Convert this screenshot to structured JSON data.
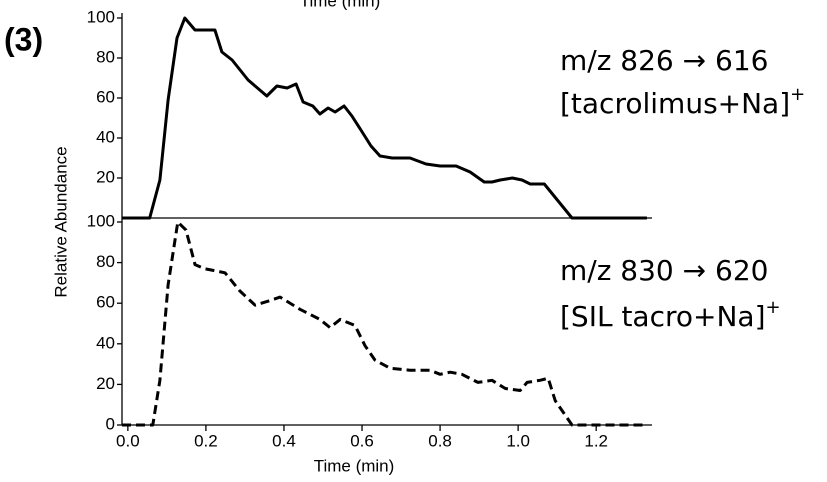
{
  "panel_label": "(3)",
  "chart_data": [
    {
      "type": "line",
      "top_xlabel": "Time (min)",
      "ylabel": "Relative Abundance",
      "xlim": [
        -0.015,
        1.343
      ],
      "ylim": [
        0,
        100
      ],
      "yticks": [
        20,
        40,
        60,
        80,
        100
      ],
      "annotations": [
        {
          "text": "m/z 826 → 616"
        },
        {
          "text": "[tacrolimus+Na]",
          "sup": "+"
        }
      ],
      "series": [
        {
          "color": "#000000",
          "linestyle": "solid",
          "x": [
            -0.015,
            0.056,
            0.082,
            0.103,
            0.126,
            0.146,
            0.172,
            0.223,
            0.241,
            0.267,
            0.308,
            0.356,
            0.382,
            0.408,
            0.431,
            0.449,
            0.474,
            0.492,
            0.513,
            0.531,
            0.554,
            0.574,
            0.597,
            0.623,
            0.646,
            0.677,
            0.723,
            0.764,
            0.8,
            0.841,
            0.877,
            0.913,
            0.933,
            0.954,
            0.985,
            1.01,
            1.031,
            1.067,
            1.138,
            1.33
          ],
          "values": [
            0,
            0,
            19,
            59,
            90,
            100,
            94,
            94,
            83,
            79,
            69,
            61,
            66,
            65,
            67,
            58,
            56,
            52,
            55,
            53,
            56,
            51,
            44,
            36,
            31,
            30,
            30,
            27,
            26,
            26,
            23,
            18,
            18,
            19,
            20,
            19,
            17,
            17,
            0,
            0
          ]
        }
      ]
    },
    {
      "type": "line",
      "xlabel": "Time (min)",
      "xlim": [
        -0.015,
        1.343
      ],
      "ylim": [
        0,
        100
      ],
      "yticks": [
        0,
        20,
        40,
        60,
        80,
        100
      ],
      "xticks": [
        {
          "value": 0,
          "label": "0.0"
        },
        {
          "value": 0.2,
          "label": "0.2"
        },
        {
          "value": 0.4,
          "label": "0.4"
        },
        {
          "value": 0.6,
          "label": "0.6"
        },
        {
          "value": 0.8,
          "label": "0.8"
        },
        {
          "value": 1,
          "label": "1.0"
        },
        {
          "value": 1.2,
          "label": "1.2"
        }
      ],
      "annotations": [
        {
          "text": "m/z 830 → 620"
        },
        {
          "text": "[SIL tacro+Na]",
          "sup": "+"
        }
      ],
      "series": [
        {
          "color": "#000000",
          "linestyle": "dashed",
          "x": [
            -0.015,
            0.064,
            0.082,
            0.103,
            0.128,
            0.149,
            0.172,
            0.197,
            0.223,
            0.249,
            0.287,
            0.326,
            0.359,
            0.39,
            0.441,
            0.492,
            0.518,
            0.544,
            0.582,
            0.608,
            0.633,
            0.672,
            0.723,
            0.774,
            0.8,
            0.826,
            0.856,
            0.897,
            0.933,
            0.967,
            1.005,
            1.023,
            1.056,
            1.077,
            1.095,
            1.138,
            1.33
          ],
          "values": [
            0,
            0,
            22,
            69,
            100,
            96,
            79,
            77,
            76,
            75,
            66,
            59,
            61,
            63,
            57,
            52,
            48,
            52,
            49,
            39,
            32,
            28,
            27,
            27,
            25,
            26,
            25,
            21,
            22,
            18,
            17,
            21,
            22,
            23,
            12,
            0,
            0
          ]
        }
      ]
    }
  ]
}
